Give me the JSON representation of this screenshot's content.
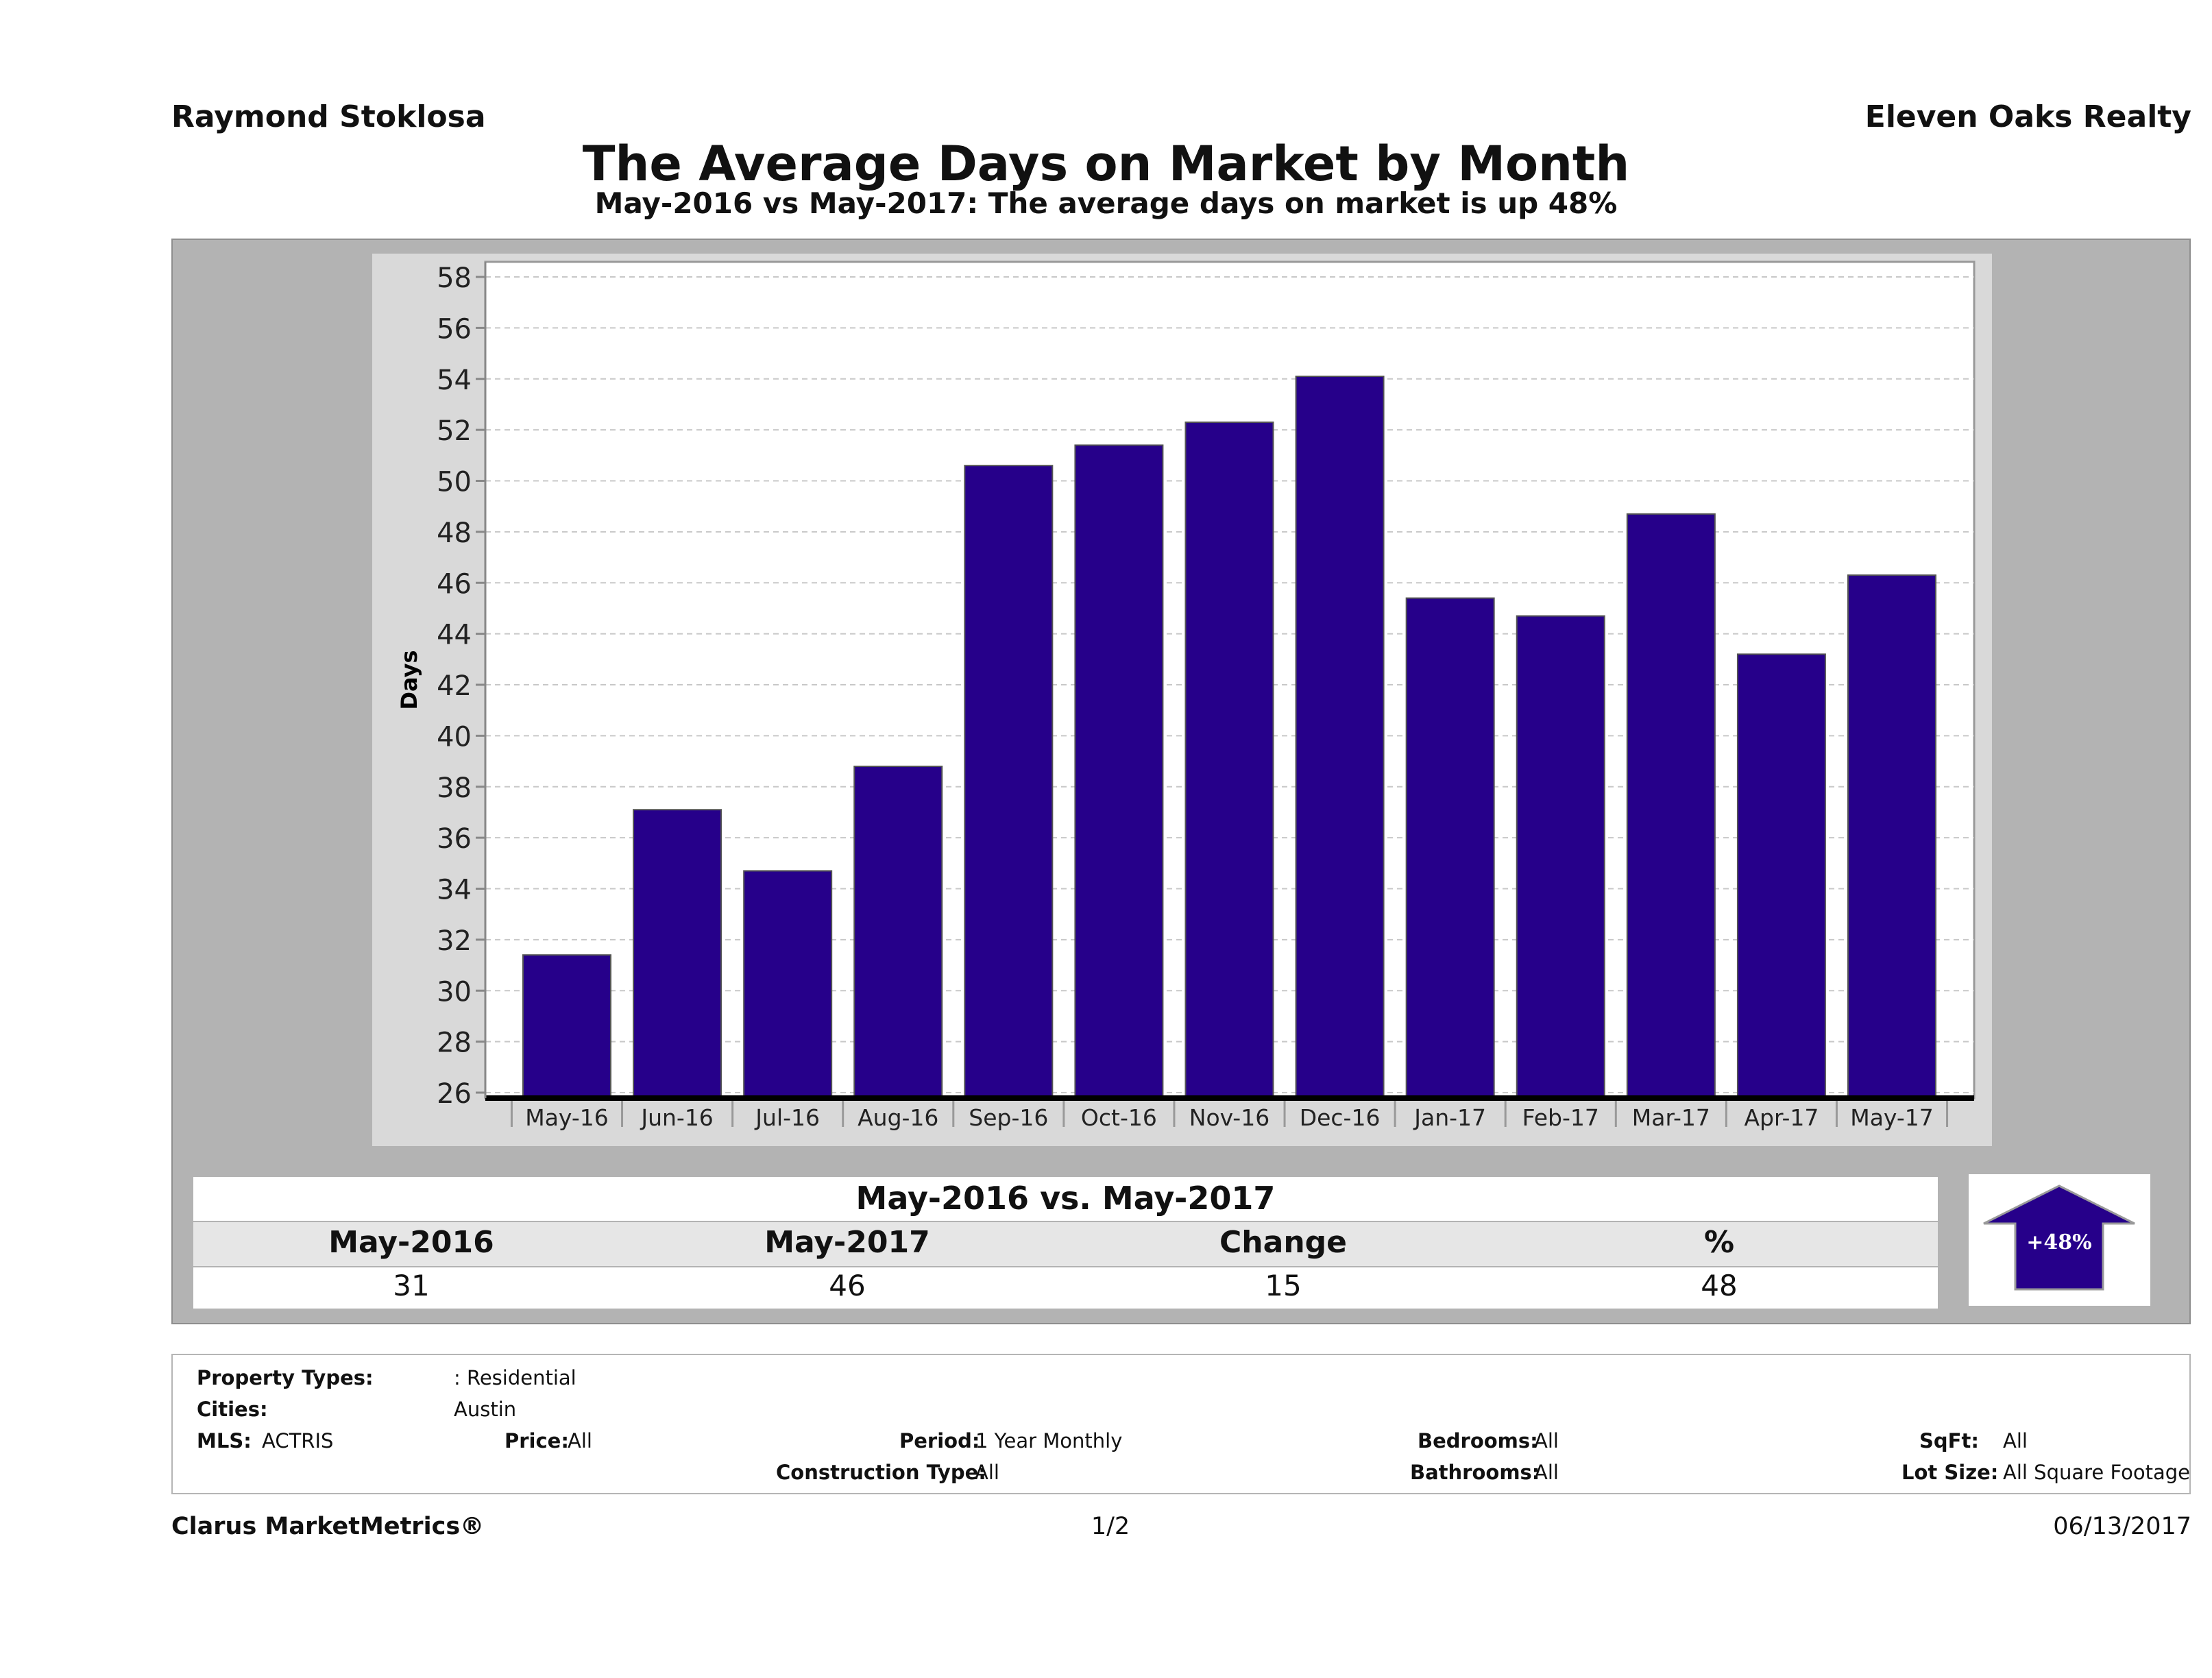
{
  "header": {
    "agent_name": "Raymond Stoklosa",
    "brokerage": "Eleven Oaks Realty",
    "title": "The Average Days on Market by Month",
    "subtitle": "May-2016 vs May-2017: The average days on market is up 48%"
  },
  "chart_data": {
    "type": "bar",
    "title": "The Average Days on Market by Month",
    "subtitle": "May-2016 vs May-2017: The average days on market is up 48%",
    "xlabel": "",
    "ylabel": "Days",
    "ylim": [
      26,
      58
    ],
    "yticks": [
      26,
      28,
      30,
      32,
      34,
      36,
      38,
      40,
      42,
      44,
      46,
      48,
      50,
      52,
      54,
      56,
      58
    ],
    "categories": [
      "May-16",
      "Jun-16",
      "Jul-16",
      "Aug-16",
      "Sep-16",
      "Oct-16",
      "Nov-16",
      "Dec-16",
      "Jan-17",
      "Feb-17",
      "Mar-17",
      "Apr-17",
      "May-17"
    ],
    "values": [
      31.4,
      37.1,
      34.7,
      38.8,
      50.6,
      51.4,
      52.3,
      54.1,
      45.4,
      44.7,
      48.7,
      43.2,
      46.3
    ],
    "bar_color": "#26008a",
    "grid": true,
    "legend": "none"
  },
  "comparison": {
    "title": "May-2016 vs. May-2017",
    "headers": [
      "May-2016",
      "May-2017",
      "Change",
      "%"
    ],
    "values": [
      "31",
      "46",
      "15",
      "48"
    ],
    "badge": "+48%",
    "direction": "up",
    "arrow_color": "#26008a"
  },
  "filters": {
    "property_types_label": "Property Types:",
    "property_types_value": ": Residential",
    "cities_label": "Cities:",
    "cities_value": "Austin",
    "mls_label": "MLS:",
    "mls_value": "ACTRIS",
    "price_label": "Price:",
    "price_value": "All",
    "period_label": "Period:",
    "period_value": "1 Year Monthly",
    "construction_label": "Construction Type:",
    "construction_value": "All",
    "bedrooms_label": "Bedrooms:",
    "bedrooms_value": "All",
    "bathrooms_label": "Bathrooms:",
    "bathrooms_value": "All",
    "sqft_label": "SqFt:",
    "sqft_value": "All",
    "lot_label": "Lot Size:",
    "lot_value": "All Square Footage"
  },
  "footer": {
    "brand": "Clarus MarketMetrics®",
    "page": "1/2",
    "date": "06/13/2017"
  }
}
